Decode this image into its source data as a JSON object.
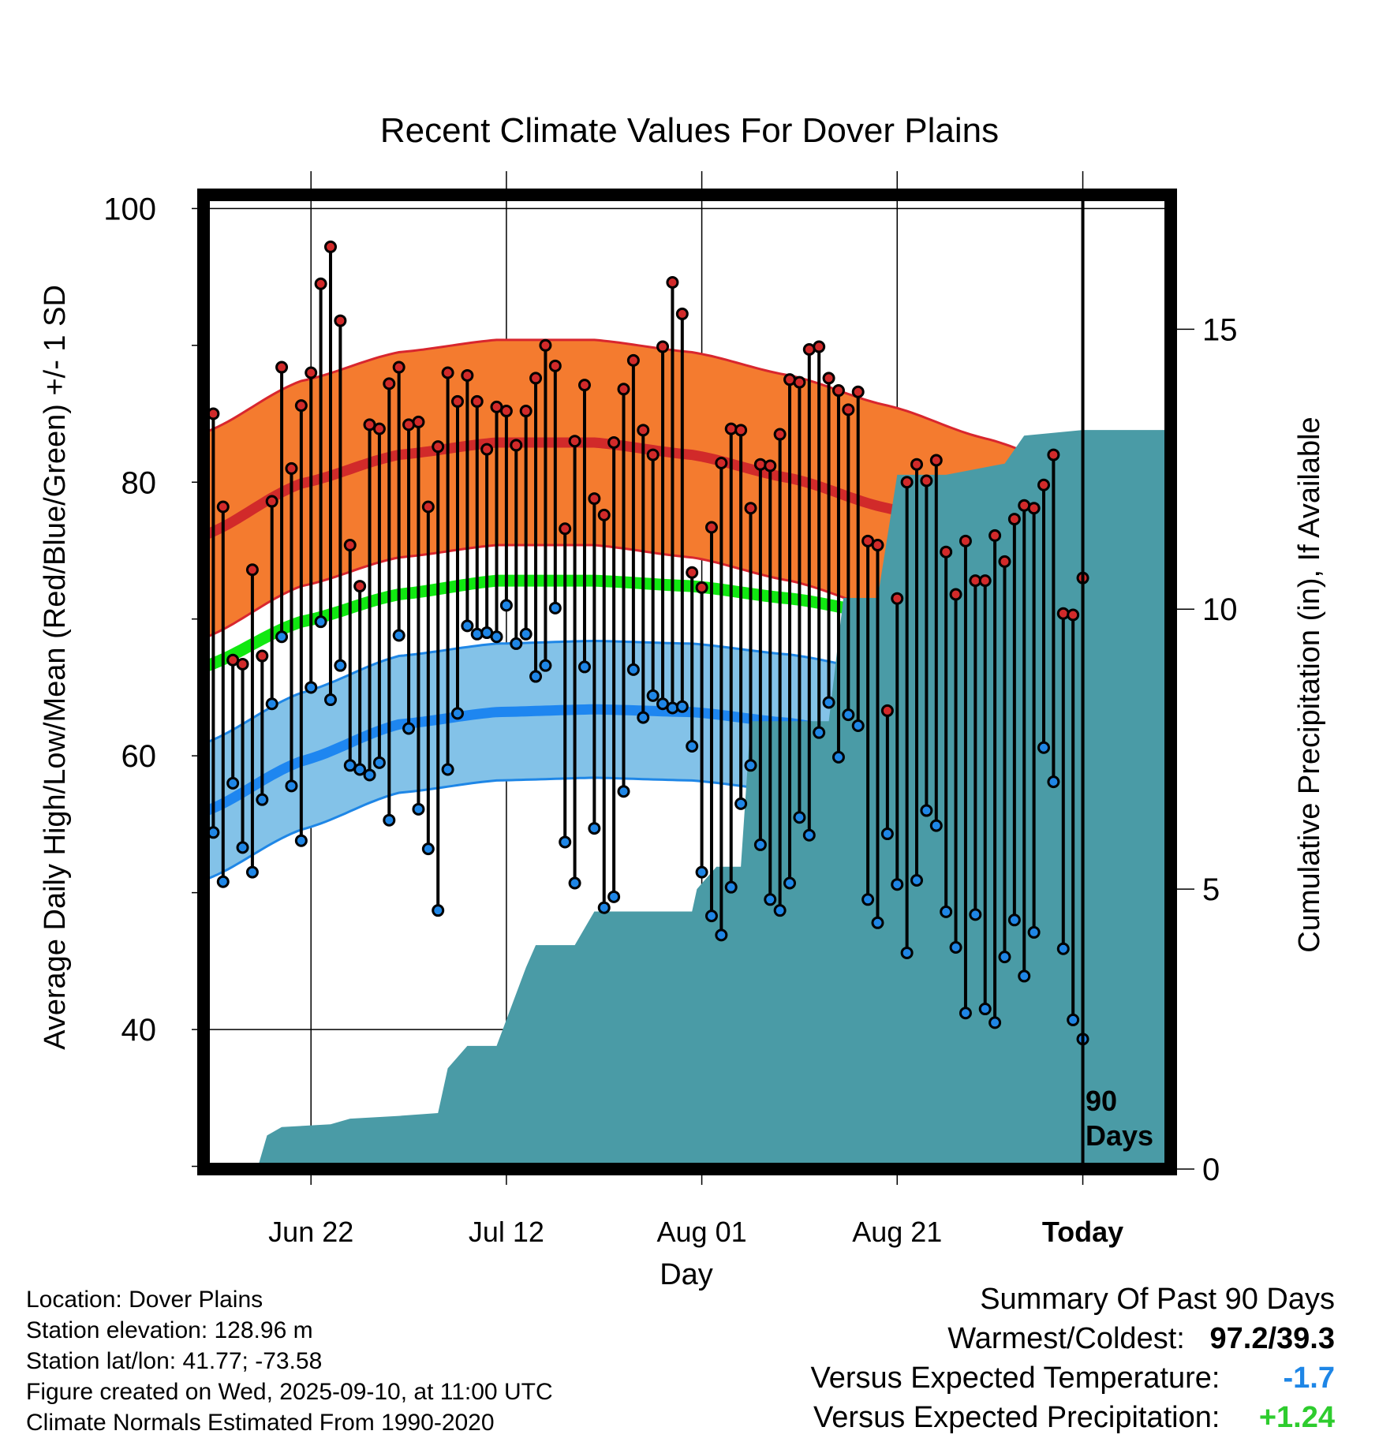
{
  "chart_data": {
    "type": "line",
    "title": "Recent Climate Values For Dover Plains",
    "xlabel": "Day",
    "ylabel": "Average Daily High/Low/Mean (Red/Blue/Green) +/- 1 SD",
    "y2label": "Cumulative Precipitation (in), If Available",
    "ylim": [
      29.8,
      101
    ],
    "y2lim": [
      0,
      17.4
    ],
    "xlim": [
      -90,
      9
    ],
    "y_ticks": [
      100,
      80,
      60,
      40
    ],
    "y_minor_ticks": [
      90,
      70,
      50,
      30
    ],
    "y2_ticks": [
      15,
      10,
      5,
      0
    ],
    "x_ticks": [
      {
        "day": -79,
        "label": "Jun 22"
      },
      {
        "day": -59,
        "label": "Jul 12"
      },
      {
        "day": -39,
        "label": "Aug 01"
      },
      {
        "day": -19,
        "label": "Aug 21"
      },
      {
        "day": 0,
        "label": "Today"
      }
    ],
    "today_marker": {
      "day": 0,
      "label_line1": "90",
      "label_line2": "Days"
    },
    "normals": {
      "day_points": [
        -90,
        -80,
        -70,
        -60,
        -50,
        -40,
        -30,
        -20,
        -10,
        0,
        9
      ],
      "high_mean": [
        76.1,
        79.9,
        82.0,
        82.9,
        82.9,
        82.0,
        80.3,
        78.1,
        75.7,
        73.2,
        70.5
      ],
      "high_sd": 7.5,
      "mean_line": [
        66.5,
        69.8,
        71.8,
        72.8,
        72.8,
        72.4,
        71.5,
        70.3,
        68.3,
        65.8,
        62.7
      ],
      "low_mean": [
        55.9,
        59.6,
        62.3,
        63.2,
        63.4,
        63.2,
        62.4,
        61.1,
        58.9,
        56.3,
        52.8
      ],
      "low_sd": 5.0
    },
    "series": [
      {
        "name": "Daily High",
        "values": [
          85,
          78.2,
          67,
          66.7,
          73.6,
          67.3,
          78.6,
          88.4,
          81,
          85.6,
          88,
          94.5,
          97.2,
          91.8,
          75.4,
          72.4,
          84.2,
          83.9,
          87.2,
          88.4,
          84.2,
          84.4,
          78.2,
          82.6,
          88,
          85.9,
          87.8,
          85.9,
          82.4,
          85.5,
          85.2,
          82.7,
          85.2,
          87.6,
          90,
          88.5,
          76.6,
          83,
          87.1,
          78.8,
          77.6,
          82.9,
          86.8,
          88.9,
          83.8,
          82,
          89.9,
          94.6,
          92.3,
          73.4,
          72.3,
          76.7,
          81.4,
          83.9,
          83.8,
          78.1,
          81.3,
          81.2,
          83.5,
          87.5,
          87.3,
          89.7,
          89.9,
          87.6,
          86.7,
          85.3,
          86.6,
          75.7,
          75.4,
          63.3,
          71.5,
          80,
          81.3,
          80.1,
          81.6,
          74.9,
          71.8,
          75.7,
          72.8,
          72.8,
          76.1,
          74.2,
          77.3,
          78.3,
          78.1,
          79.8,
          82,
          70.4,
          70.3,
          73
        ]
      },
      {
        "name": "Daily Low",
        "values": [
          54.4,
          50.8,
          58,
          53.3,
          51.5,
          56.8,
          63.8,
          68.7,
          57.8,
          53.8,
          65,
          69.8,
          64.1,
          66.6,
          59.3,
          59,
          58.6,
          59.5,
          55.3,
          68.8,
          62,
          56.1,
          53.2,
          48.7,
          59,
          63.1,
          69.5,
          68.9,
          69,
          68.7,
          71,
          68.2,
          68.9,
          65.8,
          66.6,
          70.8,
          53.7,
          50.7,
          66.5,
          54.7,
          48.9,
          49.7,
          57.4,
          66.3,
          62.8,
          64.4,
          63.8,
          63.5,
          63.6,
          60.7,
          51.5,
          48.3,
          46.9,
          50.4,
          56.5,
          59.3,
          53.5,
          49.5,
          48.7,
          50.7,
          55.5,
          54.2,
          61.7,
          63.9,
          59.9,
          63,
          62.2,
          49.5,
          47.8,
          54.3,
          50.6,
          45.6,
          50.9,
          56,
          54.9,
          48.6,
          46,
          41.2,
          48.4,
          41.5,
          40.5,
          45.3,
          48,
          43.9,
          47.1,
          60.6,
          58.1,
          45.9,
          40.7,
          39.3
        ]
      },
      {
        "name": "Cumulative Precipitation",
        "steps": [
          [
            -90,
            0
          ],
          [
            -84.5,
            0
          ],
          [
            -83.5,
            0.6
          ],
          [
            -82,
            0.75
          ],
          [
            -77,
            0.8
          ],
          [
            -75,
            0.9
          ],
          [
            -70,
            0.95
          ],
          [
            -66,
            1.0
          ],
          [
            -65,
            1.8
          ],
          [
            -63,
            2.2
          ],
          [
            -60,
            2.2
          ],
          [
            -57,
            3.6
          ],
          [
            -56,
            4.0
          ],
          [
            -52,
            4.0
          ],
          [
            -50,
            4.6
          ],
          [
            -49,
            4.6
          ],
          [
            -40,
            4.6
          ],
          [
            -39.5,
            5.0
          ],
          [
            -37.5,
            5.4
          ],
          [
            -35,
            5.4
          ],
          [
            -34,
            8.0
          ],
          [
            -26,
            8.0
          ],
          [
            -24.5,
            10.2
          ],
          [
            -21,
            10.2
          ],
          [
            -19,
            12.4
          ],
          [
            -14,
            12.4
          ],
          [
            -8,
            12.6
          ],
          [
            -6,
            13.1
          ],
          [
            0,
            13.2
          ],
          [
            9,
            13.2
          ]
        ]
      }
    ],
    "colors": {
      "high_band": "#f47b2f",
      "high_edge": "#d8262e",
      "high_line": "#d12a2a",
      "mean_line": "#11e811",
      "low_band": "#83c2e8",
      "low_edge": "#1e86e6",
      "low_line": "#1e86f0",
      "precip": "#4a9ba6",
      "high_dot": "#d12a2a",
      "low_dot": "#1f86e6"
    }
  },
  "info": {
    "location": "Location: Dover Plains",
    "elevation": "Station elevation: 128.96 m",
    "latlon": "Station lat/lon: 41.77; -73.58",
    "created": "Figure created on Wed, 2025-09-10, at 11:00 UTC",
    "normals": "Climate Normals Estimated From 1990-2020"
  },
  "summary": {
    "heading": "Summary Of Past 90 Days",
    "warm_cold_label": "Warmest/Coldest:",
    "warm_cold_value": "97.2/39.3",
    "temp_label": "Versus Expected Temperature:",
    "temp_value": "-1.7",
    "temp_color": "#1e86e6",
    "precip_label": "Versus Expected Precipitation:",
    "precip_value": "+1.24",
    "precip_color": "#2ecc2e"
  }
}
